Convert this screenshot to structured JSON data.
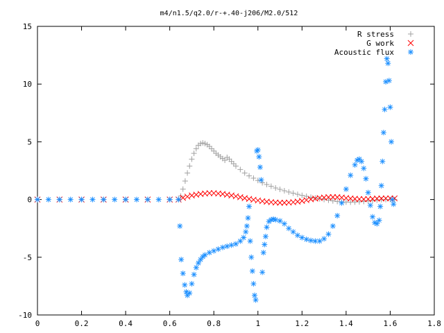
{
  "chart_data": {
    "type": "scatter",
    "title": "m4/n1.5/q2.0/r-+.40-j206/M2.0/512",
    "xlabel": "",
    "ylabel": "",
    "xlim": [
      0,
      1.8
    ],
    "ylim": [
      -10,
      15
    ],
    "x_ticks": [
      "0",
      "0.2",
      "0.4",
      "0.6",
      "0.8",
      "1",
      "1.2",
      "1.4",
      "1.6",
      "1.8"
    ],
    "y_ticks": [
      "-10",
      "-5",
      "0",
      "5",
      "10",
      "15"
    ],
    "grid": false,
    "legend_position": "top-right",
    "series": [
      {
        "name": "R stress",
        "marker": "plus",
        "color": "#a0a0a0",
        "points": [
          [
            0.0,
            0.0
          ],
          [
            0.1,
            0.0
          ],
          [
            0.2,
            0.0
          ],
          [
            0.3,
            0.0
          ],
          [
            0.4,
            0.0
          ],
          [
            0.5,
            0.0
          ],
          [
            0.6,
            0.0
          ],
          [
            0.64,
            0.0
          ],
          [
            0.65,
            0.3
          ],
          [
            0.66,
            0.9
          ],
          [
            0.67,
            1.6
          ],
          [
            0.68,
            2.3
          ],
          [
            0.69,
            2.9
          ],
          [
            0.7,
            3.5
          ],
          [
            0.71,
            4.0
          ],
          [
            0.72,
            4.4
          ],
          [
            0.73,
            4.7
          ],
          [
            0.74,
            4.85
          ],
          [
            0.75,
            4.9
          ],
          [
            0.76,
            4.85
          ],
          [
            0.77,
            4.75
          ],
          [
            0.78,
            4.6
          ],
          [
            0.79,
            4.4
          ],
          [
            0.8,
            4.2
          ],
          [
            0.81,
            4.0
          ],
          [
            0.82,
            3.85
          ],
          [
            0.83,
            3.7
          ],
          [
            0.84,
            3.55
          ],
          [
            0.85,
            3.4
          ],
          [
            0.86,
            3.65
          ],
          [
            0.87,
            3.5
          ],
          [
            0.88,
            3.3
          ],
          [
            0.89,
            3.1
          ],
          [
            0.9,
            2.9
          ],
          [
            0.92,
            2.6
          ],
          [
            0.94,
            2.3
          ],
          [
            0.96,
            2.05
          ],
          [
            0.98,
            1.85
          ],
          [
            1.0,
            1.65
          ],
          [
            1.02,
            1.45
          ],
          [
            1.04,
            1.3
          ],
          [
            1.06,
            1.15
          ],
          [
            1.08,
            1.0
          ],
          [
            1.1,
            0.88
          ],
          [
            1.12,
            0.76
          ],
          [
            1.14,
            0.65
          ],
          [
            1.16,
            0.55
          ],
          [
            1.18,
            0.45
          ],
          [
            1.2,
            0.36
          ],
          [
            1.22,
            0.28
          ],
          [
            1.24,
            0.2
          ],
          [
            1.26,
            0.13
          ],
          [
            1.28,
            0.06
          ],
          [
            1.3,
            0.0
          ],
          [
            1.32,
            -0.06
          ],
          [
            1.34,
            -0.12
          ],
          [
            1.36,
            -0.17
          ],
          [
            1.38,
            -0.2
          ],
          [
            1.4,
            -0.22
          ],
          [
            1.42,
            -0.23
          ],
          [
            1.44,
            -0.22
          ],
          [
            1.46,
            -0.2
          ],
          [
            1.48,
            -0.17
          ],
          [
            1.5,
            -0.13
          ],
          [
            1.52,
            -0.09
          ],
          [
            1.54,
            -0.05
          ],
          [
            1.56,
            -0.02
          ],
          [
            1.58,
            0.0
          ],
          [
            1.6,
            0.0
          ],
          [
            1.62,
            0.0
          ]
        ]
      },
      {
        "name": "G work",
        "marker": "cross",
        "color": "#ff0000",
        "points": [
          [
            0.0,
            0.0
          ],
          [
            0.1,
            0.0
          ],
          [
            0.2,
            0.0
          ],
          [
            0.3,
            0.0
          ],
          [
            0.4,
            0.0
          ],
          [
            0.5,
            0.0
          ],
          [
            0.6,
            0.0
          ],
          [
            0.64,
            0.0
          ],
          [
            0.66,
            0.15
          ],
          [
            0.68,
            0.25
          ],
          [
            0.7,
            0.35
          ],
          [
            0.72,
            0.42
          ],
          [
            0.74,
            0.48
          ],
          [
            0.76,
            0.52
          ],
          [
            0.78,
            0.55
          ],
          [
            0.8,
            0.55
          ],
          [
            0.82,
            0.52
          ],
          [
            0.84,
            0.48
          ],
          [
            0.86,
            0.42
          ],
          [
            0.88,
            0.35
          ],
          [
            0.9,
            0.28
          ],
          [
            0.92,
            0.2
          ],
          [
            0.94,
            0.12
          ],
          [
            0.96,
            0.05
          ],
          [
            0.98,
            -0.02
          ],
          [
            1.0,
            -0.08
          ],
          [
            1.02,
            -0.14
          ],
          [
            1.04,
            -0.19
          ],
          [
            1.06,
            -0.23
          ],
          [
            1.08,
            -0.26
          ],
          [
            1.1,
            -0.28
          ],
          [
            1.12,
            -0.28
          ],
          [
            1.14,
            -0.26
          ],
          [
            1.16,
            -0.23
          ],
          [
            1.18,
            -0.18
          ],
          [
            1.2,
            -0.12
          ],
          [
            1.22,
            -0.05
          ],
          [
            1.24,
            0.02
          ],
          [
            1.26,
            0.08
          ],
          [
            1.28,
            0.13
          ],
          [
            1.3,
            0.17
          ],
          [
            1.32,
            0.2
          ],
          [
            1.34,
            0.21
          ],
          [
            1.36,
            0.2
          ],
          [
            1.38,
            0.17
          ],
          [
            1.4,
            0.13
          ],
          [
            1.42,
            0.09
          ],
          [
            1.44,
            0.06
          ],
          [
            1.46,
            0.04
          ],
          [
            1.48,
            0.03
          ],
          [
            1.5,
            0.04
          ],
          [
            1.52,
            0.06
          ],
          [
            1.54,
            0.08
          ],
          [
            1.56,
            0.09
          ],
          [
            1.58,
            0.1
          ],
          [
            1.6,
            0.1
          ],
          [
            1.62,
            0.1
          ]
        ]
      },
      {
        "name": "Acoustic flux",
        "marker": "star",
        "color": "#1e90ff",
        "points": [
          [
            0.0,
            0.0
          ],
          [
            0.05,
            0.0
          ],
          [
            0.1,
            0.0
          ],
          [
            0.15,
            0.0
          ],
          [
            0.2,
            0.0
          ],
          [
            0.25,
            0.0
          ],
          [
            0.3,
            0.0
          ],
          [
            0.35,
            0.0
          ],
          [
            0.4,
            0.0
          ],
          [
            0.45,
            0.0
          ],
          [
            0.5,
            0.0
          ],
          [
            0.55,
            0.0
          ],
          [
            0.6,
            0.0
          ],
          [
            0.64,
            0.0
          ],
          [
            0.646,
            -2.3
          ],
          [
            0.652,
            -5.2
          ],
          [
            0.66,
            -6.4
          ],
          [
            0.668,
            -7.4
          ],
          [
            0.675,
            -8.0
          ],
          [
            0.68,
            -8.3
          ],
          [
            0.69,
            -8.1
          ],
          [
            0.7,
            -7.3
          ],
          [
            0.71,
            -6.5
          ],
          [
            0.72,
            -5.9
          ],
          [
            0.73,
            -5.5
          ],
          [
            0.74,
            -5.2
          ],
          [
            0.75,
            -4.95
          ],
          [
            0.76,
            -4.8
          ],
          [
            0.78,
            -4.6
          ],
          [
            0.8,
            -4.45
          ],
          [
            0.82,
            -4.3
          ],
          [
            0.84,
            -4.15
          ],
          [
            0.86,
            -4.05
          ],
          [
            0.88,
            -3.95
          ],
          [
            0.9,
            -3.85
          ],
          [
            0.92,
            -3.6
          ],
          [
            0.935,
            -3.3
          ],
          [
            0.945,
            -2.8
          ],
          [
            0.95,
            -2.3
          ],
          [
            0.955,
            -1.6
          ],
          [
            0.96,
            -0.6
          ],
          [
            0.965,
            -3.6
          ],
          [
            0.97,
            -5.0
          ],
          [
            0.975,
            -6.2
          ],
          [
            0.98,
            -7.3
          ],
          [
            0.985,
            -8.3
          ],
          [
            0.99,
            -8.7
          ],
          [
            0.995,
            4.2
          ],
          [
            1.0,
            4.3
          ],
          [
            1.005,
            3.7
          ],
          [
            1.01,
            2.8
          ],
          [
            1.015,
            1.7
          ],
          [
            1.02,
            -6.3
          ],
          [
            1.025,
            -4.6
          ],
          [
            1.03,
            -3.9
          ],
          [
            1.035,
            -3.2
          ],
          [
            1.04,
            -2.4
          ],
          [
            1.05,
            -1.9
          ],
          [
            1.06,
            -1.75
          ],
          [
            1.07,
            -1.7
          ],
          [
            1.08,
            -1.75
          ],
          [
            1.1,
            -1.85
          ],
          [
            1.12,
            -2.1
          ],
          [
            1.14,
            -2.5
          ],
          [
            1.16,
            -2.8
          ],
          [
            1.18,
            -3.1
          ],
          [
            1.2,
            -3.3
          ],
          [
            1.22,
            -3.45
          ],
          [
            1.24,
            -3.55
          ],
          [
            1.26,
            -3.6
          ],
          [
            1.28,
            -3.6
          ],
          [
            1.3,
            -3.4
          ],
          [
            1.32,
            -3.0
          ],
          [
            1.34,
            -2.3
          ],
          [
            1.36,
            -1.4
          ],
          [
            1.38,
            -0.3
          ],
          [
            1.4,
            0.9
          ],
          [
            1.42,
            2.1
          ],
          [
            1.44,
            3.0
          ],
          [
            1.45,
            3.4
          ],
          [
            1.46,
            3.5
          ],
          [
            1.47,
            3.3
          ],
          [
            1.48,
            2.7
          ],
          [
            1.49,
            1.8
          ],
          [
            1.5,
            0.6
          ],
          [
            1.51,
            -0.5
          ],
          [
            1.52,
            -1.5
          ],
          [
            1.53,
            -2.0
          ],
          [
            1.54,
            -2.1
          ],
          [
            1.55,
            -1.8
          ],
          [
            1.555,
            -0.6
          ],
          [
            1.56,
            1.2
          ],
          [
            1.565,
            3.3
          ],
          [
            1.57,
            5.8
          ],
          [
            1.575,
            7.8
          ],
          [
            1.58,
            10.2
          ],
          [
            1.585,
            12.2
          ],
          [
            1.59,
            11.8
          ],
          [
            1.595,
            10.3
          ],
          [
            1.6,
            8.0
          ],
          [
            1.605,
            5.0
          ],
          [
            1.61,
            0.0
          ],
          [
            1.615,
            -0.4
          ]
        ]
      }
    ]
  }
}
